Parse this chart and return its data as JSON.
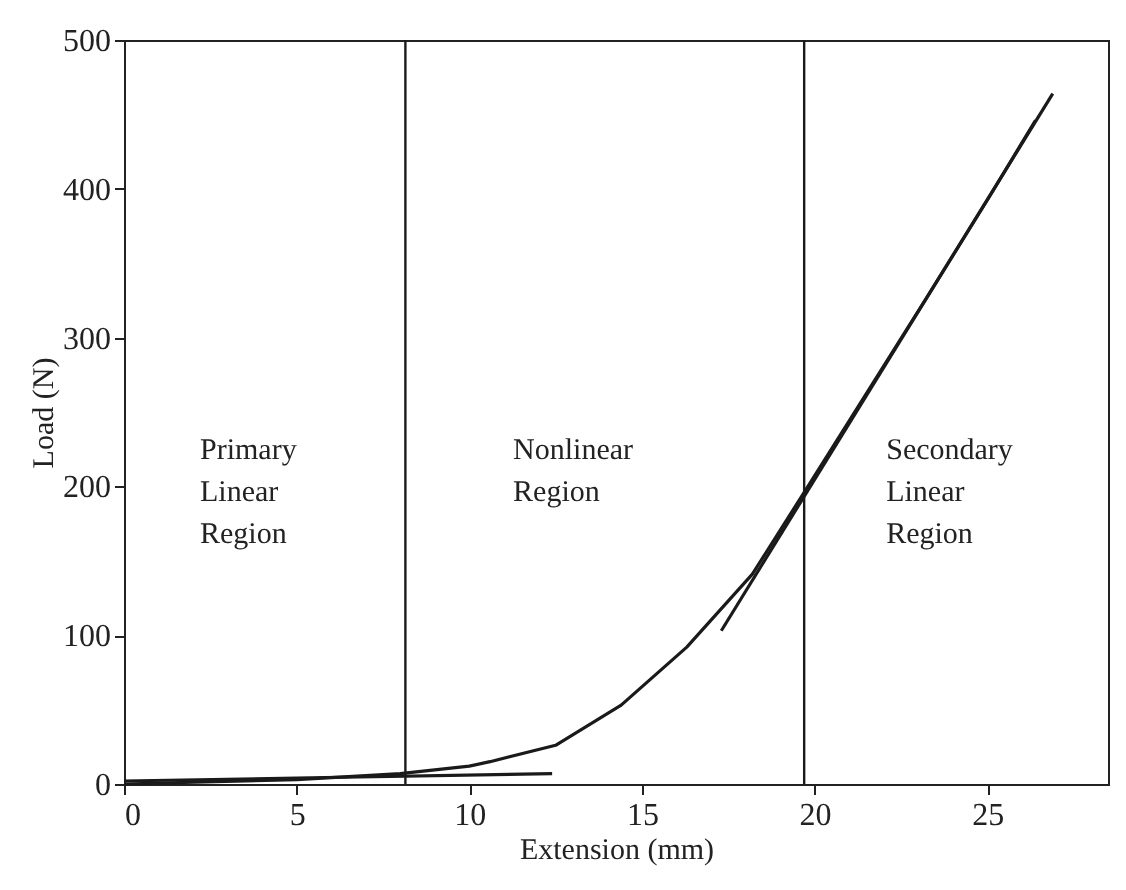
{
  "chart_data": {
    "type": "line",
    "xlabel": "Extension (mm)",
    "ylabel": "Load (N)",
    "xlim": [
      0,
      28.5
    ],
    "xticks": [
      0,
      5,
      10,
      15,
      20,
      25
    ],
    "ylim": [
      0,
      500
    ],
    "yticks": [
      0,
      100,
      200,
      300,
      400,
      500
    ],
    "grid": false,
    "line_style": "solid",
    "series": [
      {
        "color": "#1a1a1a",
        "x": [
          0,
          5,
          8,
          10,
          10.6,
          12.5,
          14.4,
          16.3,
          18.2,
          19.7,
          21.3,
          23.2,
          25.1,
          26.4
        ],
        "values": [
          0,
          3,
          7,
          12,
          15,
          26,
          53,
          92,
          141,
          196,
          255,
          325,
          396,
          446
        ]
      },
      {
        "color": "#1a1a1a",
        "x": [
          0,
          12.4
        ],
        "values": [
          2,
          7
        ]
      },
      {
        "color": "#1a1a1a",
        "x": [
          17.3,
          26.9
        ],
        "values": [
          103,
          464
        ]
      }
    ],
    "ref_lines": [
      {
        "axis": "x",
        "value": 8.15,
        "color": "#1a1a1a"
      },
      {
        "axis": "x",
        "value": 19.7,
        "color": "#1a1a1a"
      }
    ],
    "annotations": [
      "Primary\nLinear\nRegion",
      "Nonlinear\nRegion",
      "Secondary\nLinear\nRegion"
    ]
  }
}
